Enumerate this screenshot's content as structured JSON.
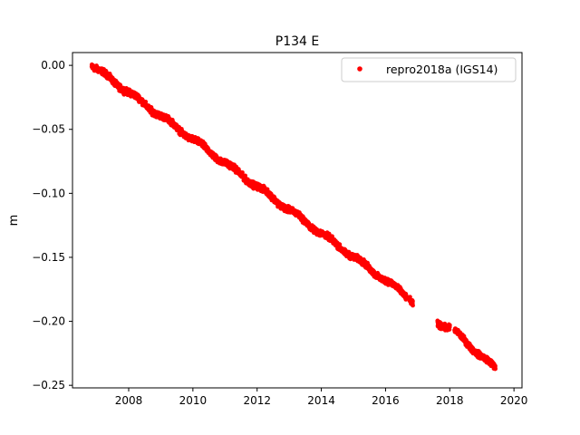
{
  "chart_data": {
    "type": "scatter",
    "title": "P134 E",
    "xlabel": "",
    "ylabel": "m",
    "xlim": [
      2006.25,
      2020.25
    ],
    "ylim": [
      -0.252,
      0.01
    ],
    "xticks": [
      2008,
      2010,
      2012,
      2014,
      2016,
      2018,
      2020
    ],
    "xtick_labels": [
      "2008",
      "2010",
      "2012",
      "2014",
      "2016",
      "2018",
      "2020"
    ],
    "yticks": [
      0.0,
      -0.05,
      -0.1,
      -0.15,
      -0.2,
      -0.25
    ],
    "ytick_labels": [
      "0.00",
      "−0.05",
      "−0.10",
      "−0.15",
      "−0.20",
      "−0.25"
    ],
    "grid": false,
    "legend_position": "top-right",
    "series": [
      {
        "name": "repro2018a (IGS14)",
        "color": "#ff0000",
        "marker": "dot",
        "segments": [
          {
            "x_start": 2006.85,
            "x_end": 2016.65,
            "y_start": 0.0,
            "y_end": -0.18
          },
          {
            "x_start": 2016.75,
            "x_end": 2016.85,
            "y_start": -0.182,
            "y_end": -0.185
          },
          {
            "x_start": 2017.62,
            "x_end": 2018.0,
            "y_start": -0.201,
            "y_end": -0.205
          },
          {
            "x_start": 2018.15,
            "x_end": 2019.42,
            "y_start": -0.208,
            "y_end": -0.237
          }
        ]
      }
    ]
  }
}
